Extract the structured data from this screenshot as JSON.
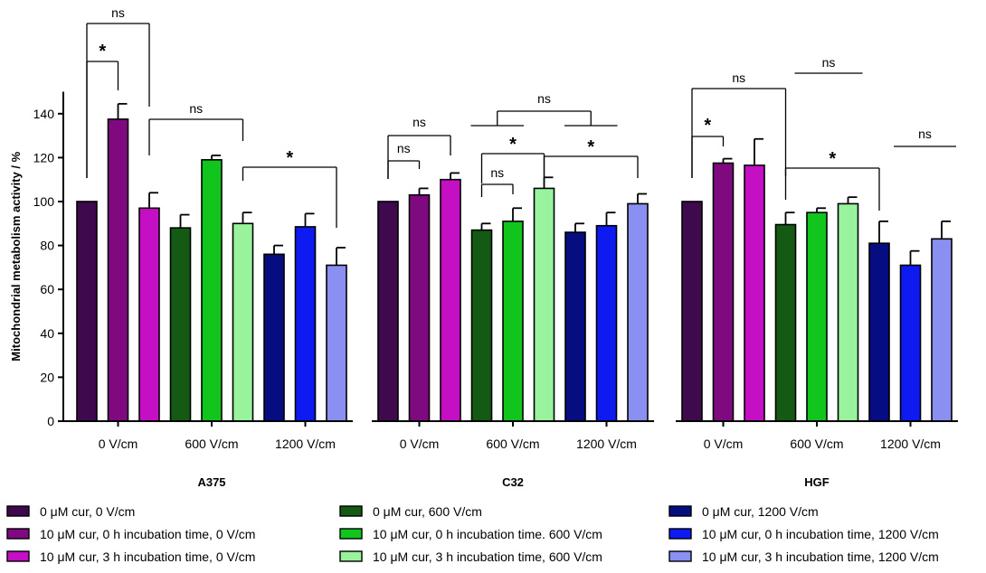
{
  "chart_data": {
    "type": "bar",
    "ylabel": "Mitochondrial metabolism activity / %",
    "xlabel": "",
    "ylim": [
      0,
      150
    ],
    "yticks": [
      0,
      20,
      40,
      60,
      80,
      100,
      120,
      140
    ],
    "groups": [
      {
        "name": "A375",
        "subgroups": [
          "0 V/cm",
          "600 V/cm",
          "1200 V/cm"
        ],
        "values": [
          100,
          137.5,
          97,
          88,
          119,
          90,
          76,
          88.5,
          71
        ],
        "errors": [
          0,
          7,
          7,
          6,
          2,
          5,
          4,
          6,
          8
        ]
      },
      {
        "name": "C32",
        "subgroups": [
          "0 V/cm",
          "600 V/cm",
          "1200 V/cm"
        ],
        "values": [
          100,
          103,
          110,
          87,
          91,
          106,
          86,
          89,
          99
        ],
        "errors": [
          0,
          3,
          3,
          3,
          6,
          5,
          4,
          6,
          4.5
        ]
      },
      {
        "name": "HGF",
        "subgroups": [
          "0 V/cm",
          "600 V/cm",
          "1200 V/cm"
        ],
        "values": [
          100,
          117.5,
          116.5,
          89.5,
          95,
          99,
          81,
          71,
          83
        ],
        "errors": [
          0,
          2,
          12,
          5.5,
          2,
          3,
          10,
          6.5,
          8
        ]
      }
    ],
    "series": [
      {
        "name": "0 μM cur, 0 V/cm",
        "color": "#3f0a4d"
      },
      {
        "name": "10 μM cur, 0 h incubation time, 0 V/cm",
        "color": "#7f0a80"
      },
      {
        "name": "10 μM cur, 3 h incubation time, 0 V/cm",
        "color": "#c40fc4"
      },
      {
        "name": "0 μM cur, 600 V/cm",
        "color": "#145a14"
      },
      {
        "name": "10 μM cur, 0 h incubation time. 600 V/cm",
        "color": "#12c51d"
      },
      {
        "name": "10 μM cur, 3 h incubation time, 600 V/cm",
        "color": "#99f39c"
      },
      {
        "name": "0 μM cur, 1200 V/cm",
        "color": "#060d80"
      },
      {
        "name": "10 μM cur, 0 h incubation time, 1200 V/cm",
        "color": "#0d1af0"
      },
      {
        "name": "10 μM cur, 3 h incubation time, 1200 V/cm",
        "color": "#8a8ff2"
      }
    ],
    "annotations": [
      {
        "text": "ns",
        "kind": "ns"
      },
      {
        "text": "*",
        "kind": "star"
      },
      {
        "text": "ns",
        "kind": "ns"
      },
      {
        "text": "*",
        "kind": "star"
      },
      {
        "text": "ns",
        "kind": "ns"
      },
      {
        "text": "ns",
        "kind": "ns"
      },
      {
        "text": "*",
        "kind": "star"
      },
      {
        "text": "ns",
        "kind": "ns"
      },
      {
        "text": "*",
        "kind": "star"
      },
      {
        "text": "ns",
        "kind": "ns"
      },
      {
        "text": "ns",
        "kind": "ns"
      },
      {
        "text": "*",
        "kind": "star"
      },
      {
        "text": "*",
        "kind": "star"
      },
      {
        "text": "ns",
        "kind": "ns"
      },
      {
        "text": "ns",
        "kind": "ns"
      }
    ]
  }
}
